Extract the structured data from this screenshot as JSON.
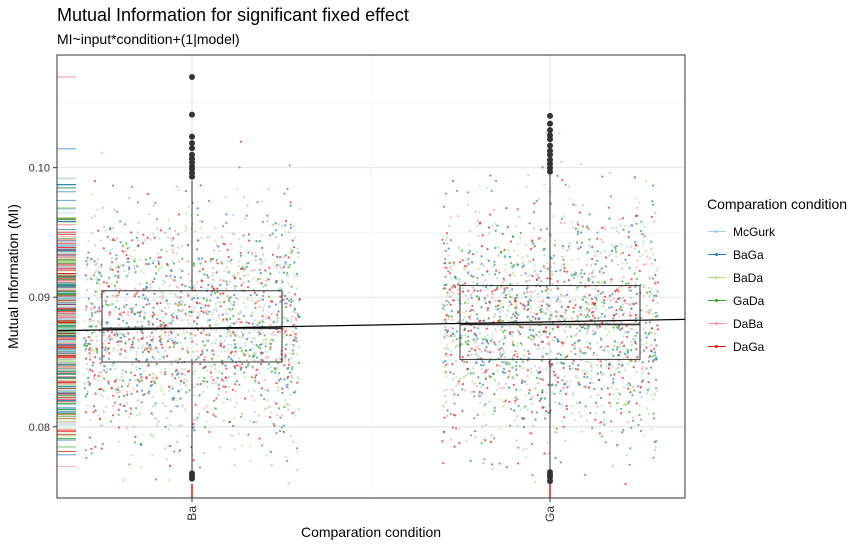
{
  "title": "Mutual Information for significant fixed effect",
  "subtitle": "MI~input*condition+(1|model)",
  "chart_data": {
    "type": "boxplot",
    "xlabel": "Comparation condition",
    "ylabel": "Mutual Information (MI)",
    "categories": [
      "Ba",
      "Ga"
    ],
    "ylim": [
      0.0745,
      0.1087
    ],
    "yticks": [
      0.08,
      0.09,
      0.1
    ],
    "ytick_labels": [
      "0.08",
      "0.09",
      "0.10"
    ],
    "grid": true,
    "boxes": [
      {
        "category": "Ba",
        "q1": 0.085,
        "median": 0.0876,
        "q3": 0.0905,
        "whisker_low": 0.0765,
        "whisker_high": 0.099,
        "outliers_high": [
          0.0993,
          0.0996,
          0.0999,
          0.1001,
          0.1004,
          0.1007,
          0.101,
          0.1015,
          0.1019,
          0.1024,
          0.1041,
          0.107
        ],
        "outliers_low": [
          0.076,
          0.0762,
          0.0764
        ]
      },
      {
        "category": "Ga",
        "q1": 0.0852,
        "median": 0.0879,
        "q3": 0.0909,
        "whisker_low": 0.0765,
        "whisker_high": 0.0995,
        "outliers_high": [
          0.0997,
          0.1,
          0.1003,
          0.1006,
          0.101,
          0.1013,
          0.1017,
          0.1022,
          0.1025,
          0.1029,
          0.1034,
          0.104
        ],
        "outliers_low": [
          0.0758,
          0.0761,
          0.0763,
          0.0765
        ]
      }
    ],
    "trend_line": {
      "x": [
        "Ba",
        "Ga"
      ],
      "y": [
        0.0876,
        0.0881
      ]
    },
    "series": [
      {
        "name": "McGurk",
        "color": "#a6cee3"
      },
      {
        "name": "BaGa",
        "color": "#1f78b4"
      },
      {
        "name": "BaDa",
        "color": "#b2df8a"
      },
      {
        "name": "GaDa",
        "color": "#33a02c"
      },
      {
        "name": "DaBa",
        "color": "#fb9a99"
      },
      {
        "name": "DaGa",
        "color": "#e31a1c"
      }
    ],
    "points_distribution": {
      "mean": 0.0878,
      "sd": 0.0045,
      "min": 0.0755,
      "max": 0.1045
    }
  },
  "legend": {
    "title": "Comparation condition"
  }
}
